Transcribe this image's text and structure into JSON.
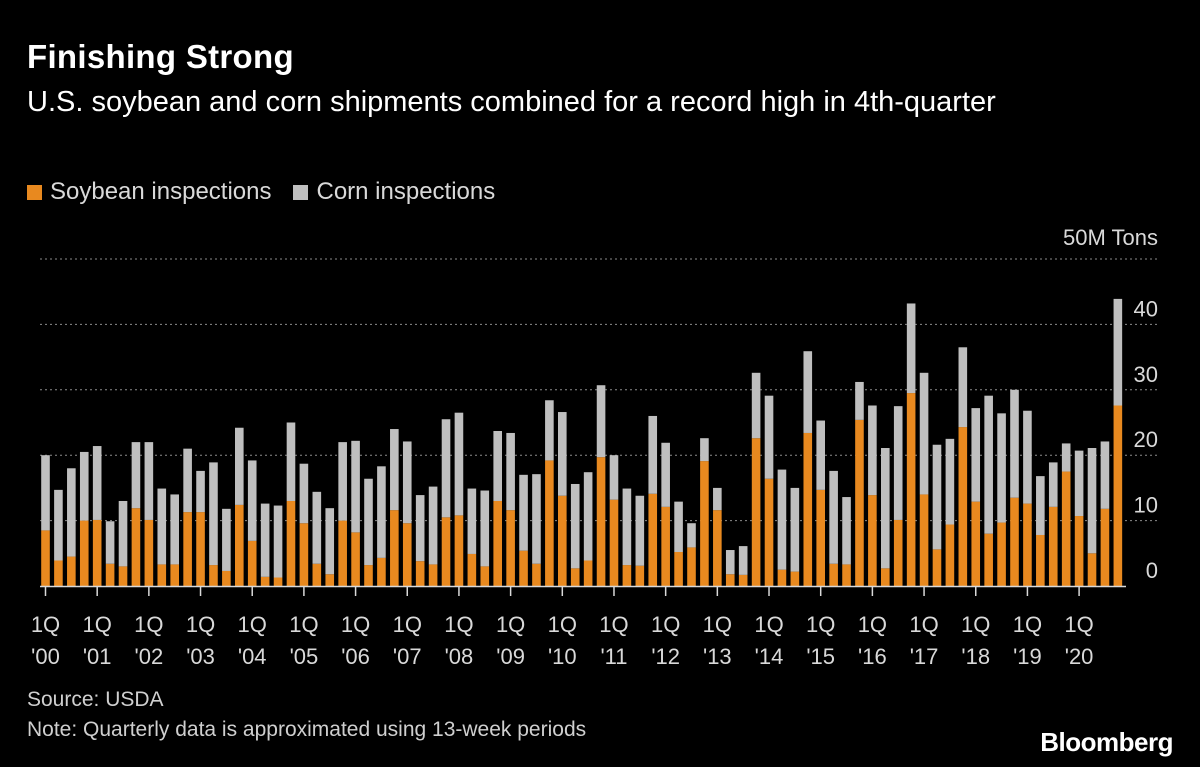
{
  "title": "Finishing Strong",
  "subtitle": "U.S. soybean and corn shipments combined for a record high in 4th-quarter",
  "legend": [
    {
      "label": "Soybean inspections",
      "color": "#e8891f"
    },
    {
      "label": "Corn inspections",
      "color": "#bfbfbf"
    }
  ],
  "source": "Source: USDA",
  "note": "Note: Quarterly data is approximated using 13-week periods",
  "brand": "Bloomberg",
  "chart_data": {
    "type": "bar",
    "stacked": true,
    "unit_label": "50M Tons",
    "ylim": [
      0,
      50
    ],
    "yticks": [
      "0",
      "10",
      "20",
      "30",
      "40"
    ],
    "xtick_labels": [
      {
        "q": "1Q",
        "y": "'00"
      },
      {
        "q": "1Q",
        "y": "'01"
      },
      {
        "q": "1Q",
        "y": "'02"
      },
      {
        "q": "1Q",
        "y": "'03"
      },
      {
        "q": "1Q",
        "y": "'04"
      },
      {
        "q": "1Q",
        "y": "'05"
      },
      {
        "q": "1Q",
        "y": "'06"
      },
      {
        "q": "1Q",
        "y": "'07"
      },
      {
        "q": "1Q",
        "y": "'08"
      },
      {
        "q": "1Q",
        "y": "'09"
      },
      {
        "q": "1Q",
        "y": "'10"
      },
      {
        "q": "1Q",
        "y": "'11"
      },
      {
        "q": "1Q",
        "y": "'12"
      },
      {
        "q": "1Q",
        "y": "'13"
      },
      {
        "q": "1Q",
        "y": "'14"
      },
      {
        "q": "1Q",
        "y": "'15"
      },
      {
        "q": "1Q",
        "y": "'16"
      },
      {
        "q": "1Q",
        "y": "'17"
      },
      {
        "q": "1Q",
        "y": "'18"
      },
      {
        "q": "1Q",
        "y": "'19"
      },
      {
        "q": "1Q",
        "y": "'20"
      }
    ],
    "series": [
      {
        "name": "Soybean inspections",
        "color": "#e8891f",
        "values": [
          8.5,
          3.9,
          4.5,
          10.0,
          10.1,
          3.4,
          3.0,
          11.9,
          10.1,
          3.3,
          3.3,
          11.3,
          11.3,
          3.2,
          2.3,
          12.4,
          6.9,
          1.4,
          1.3,
          13.0,
          9.6,
          3.4,
          1.8,
          10.0,
          8.2,
          3.2,
          4.3,
          11.6,
          9.6,
          3.8,
          3.3,
          10.5,
          10.8,
          4.9,
          3.0,
          13.0,
          11.6,
          5.4,
          3.4,
          19.2,
          13.8,
          2.7,
          3.9,
          19.7,
          13.2,
          3.2,
          3.1,
          14.1,
          12.1,
          5.2,
          5.9,
          19.1,
          11.6,
          1.8,
          1.7,
          22.6,
          16.4,
          2.5,
          2.2,
          23.4,
          14.7,
          3.4,
          3.3,
          25.4,
          13.9,
          2.7,
          10.1,
          29.5,
          14.0,
          5.6,
          9.4,
          24.3,
          12.9,
          8.0,
          9.7,
          13.5,
          12.6,
          7.8,
          12.1,
          17.5,
          10.7,
          5.0,
          11.8,
          27.6
        ]
      },
      {
        "name": "Corn inspections",
        "color": "#bfbfbf",
        "values": [
          11.5,
          10.8,
          13.5,
          10.5,
          11.3,
          6.5,
          10.0,
          10.1,
          11.9,
          11.6,
          10.7,
          9.7,
          6.3,
          15.7,
          9.5,
          11.8,
          12.3,
          11.2,
          11.0,
          12.0,
          9.1,
          11.0,
          10.1,
          12.0,
          14.0,
          13.2,
          14.0,
          12.4,
          12.5,
          10.1,
          11.9,
          15.0,
          15.7,
          10.0,
          11.6,
          10.7,
          11.8,
          11.6,
          13.7,
          9.2,
          12.8,
          12.9,
          13.5,
          11.0,
          6.8,
          11.7,
          10.7,
          11.9,
          9.8,
          7.7,
          3.7,
          3.5,
          3.4,
          3.7,
          4.4,
          10.0,
          12.7,
          15.3,
          12.8,
          12.5,
          10.6,
          14.2,
          10.3,
          5.8,
          13.7,
          18.4,
          17.4,
          13.7,
          18.6,
          16.0,
          13.1,
          12.2,
          14.3,
          21.1,
          16.7,
          16.5,
          14.2,
          9.0,
          6.8,
          4.3,
          10.0,
          16.1,
          10.3,
          16.3
        ]
      }
    ]
  }
}
